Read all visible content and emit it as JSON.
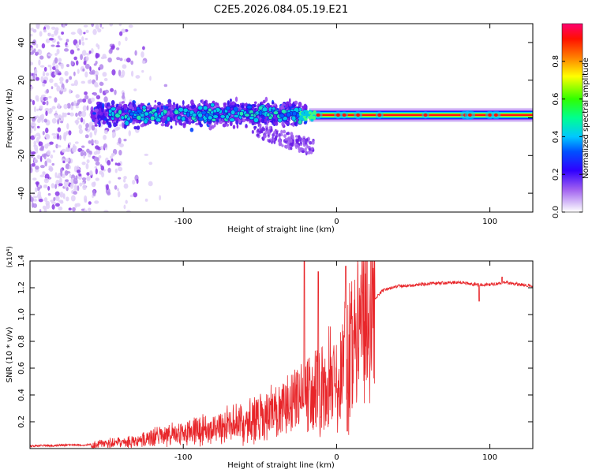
{
  "title": "C2E5.2026.084.05.19.E21",
  "chart_data": [
    {
      "type": "heatmap",
      "name": "spectrogram",
      "xlabel": "Height of straight line (km)",
      "ylabel": "Frequency (Hz)",
      "xlim": [
        -200,
        128
      ],
      "ylim": [
        -50,
        50
      ],
      "xticks": [
        -100,
        0,
        100
      ],
      "xticklabels": [
        "-100",
        "0",
        "100"
      ],
      "yticks": [
        -40,
        -20,
        0,
        20,
        40
      ],
      "yticklabels": [
        "-40",
        "-20",
        "0",
        "20",
        "40"
      ],
      "colorbar": {
        "label": "Normalized spectral amplitude",
        "range": [
          0,
          1
        ],
        "ticks": [
          0.0,
          0.2,
          0.4,
          0.6,
          0.8
        ],
        "ticklabels": [
          "0.0",
          "0.2",
          "0.4",
          "0.6",
          "0.8"
        ],
        "colormap": [
          "#ffffff",
          "#c8b0f0",
          "#8a2be2",
          "#0000ff",
          "#00c0ff",
          "#00ff80",
          "#80ff00",
          "#ffff00",
          "#ff8000",
          "#ff0000",
          "#ff0080"
        ]
      },
      "features": {
        "noise_region_x": [
          -200,
          -110
        ],
        "scatter_band_x": [
          -160,
          -20
        ],
        "carrier_line_x": [
          -20,
          128
        ],
        "carrier_frequency_hz": 1.5
      }
    },
    {
      "type": "line",
      "name": "snr",
      "color": "#e8262a",
      "xlabel": "Height of straight line (km)",
      "ylabel": "SNR (10 * v/v)",
      "y_multiplier_label": "(x10⁴)",
      "xlim": [
        -200,
        128
      ],
      "ylim": [
        0,
        1.4
      ],
      "xticks": [
        -100,
        0,
        100
      ],
      "xticklabels": [
        "-100",
        "0",
        "100"
      ],
      "yticks": [
        0.2,
        0.4,
        0.6,
        0.8,
        1.0,
        1.2,
        1.4
      ],
      "yticklabels": [
        "0.2",
        "0.4",
        "0.6",
        "0.8",
        "1.0",
        "1.2",
        "1.4"
      ],
      "envelope": {
        "x": [
          -200,
          -160,
          -130,
          -120,
          -100,
          -80,
          -60,
          -40,
          -30,
          -20,
          -15,
          -10,
          -5,
          0,
          5,
          10,
          15,
          20,
          25,
          30,
          40,
          60,
          80,
          95,
          105,
          110,
          128
        ],
        "y": [
          0.02,
          0.03,
          0.06,
          0.09,
          0.12,
          0.16,
          0.22,
          0.28,
          0.35,
          0.42,
          0.45,
          0.5,
          0.55,
          0.62,
          0.7,
          0.82,
          0.95,
          1.05,
          1.12,
          1.18,
          1.21,
          1.23,
          1.24,
          1.22,
          1.23,
          1.24,
          1.21
        ]
      },
      "annotations": {
        "spike_peaks": [
          {
            "x": -21,
            "y": 1.42
          },
          {
            "x": -12,
            "y": 1.32
          },
          {
            "x": 6,
            "y": 1.36
          },
          {
            "x": 7,
            "y": 0.13
          },
          {
            "x": 93,
            "y": 1.1
          },
          {
            "x": 108,
            "y": 1.28
          }
        ]
      }
    }
  ]
}
